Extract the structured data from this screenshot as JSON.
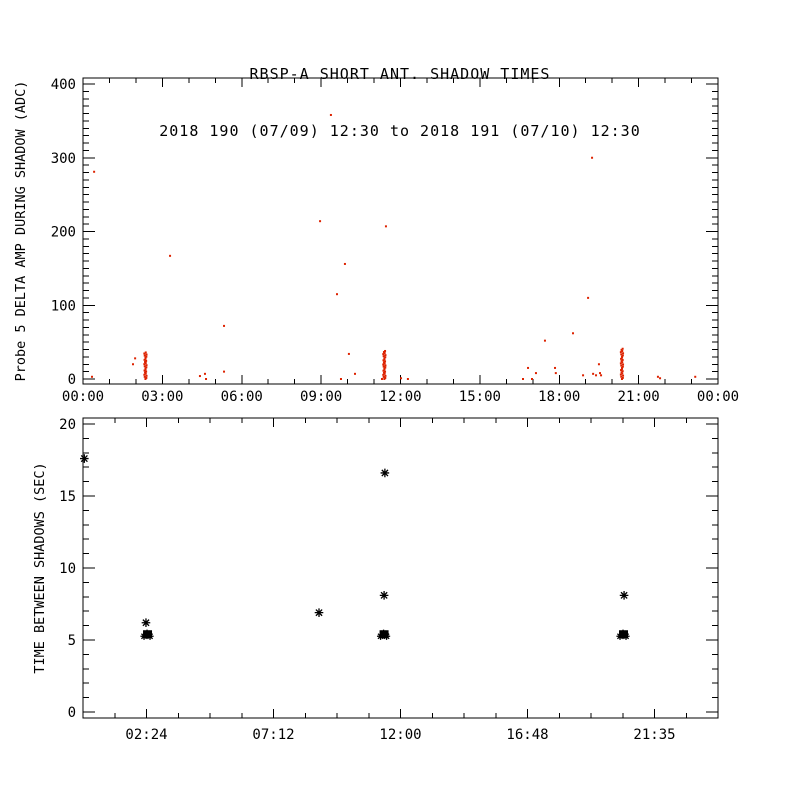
{
  "title": {
    "line1": "RBSP-A SHORT ANT. SHADOW TIMES",
    "line2": "2018 190 (07/09) 12:30 to 2018 191 (07/10) 12:30"
  },
  "colors": {
    "background": "#ffffff",
    "axis": "#000000",
    "top_marker": "#dd2200",
    "bottom_marker": "#000000"
  },
  "chart_data": [
    {
      "type": "scatter",
      "panel": "top",
      "title": "RBSP-A SHORT ANT. SHADOW TIMES",
      "subtitle": "2018 190 (07/09) 12:30 to 2018 191 (07/10) 12:30",
      "xlabel": "",
      "ylabel": "Probe 5 DELTA AMP DURING SHADOW (ADC)",
      "xlim_hours": [
        0,
        24
      ],
      "ylim": [
        0,
        400
      ],
      "x_major_tick_hours": [
        0,
        3,
        6,
        9,
        12,
        15,
        18,
        21,
        24
      ],
      "x_major_tick_labels": [
        "00:00",
        "03:00",
        "06:00",
        "09:00",
        "12:00",
        "15:00",
        "18:00",
        "21:00",
        "00:00"
      ],
      "x_minor_interval_hours": 1,
      "y_major_ticks": [
        0,
        100,
        200,
        300,
        400
      ],
      "y_minor_interval": 10,
      "grid": false,
      "marker": "dot",
      "marker_color": "#dd2200",
      "points_hour_value": [
        [
          0.34,
          3
        ],
        [
          0.42,
          281
        ],
        [
          1.89,
          20
        ],
        [
          1.97,
          28
        ],
        [
          3.29,
          167
        ],
        [
          4.42,
          4
        ],
        [
          4.61,
          7
        ],
        [
          4.65,
          0
        ],
        [
          5.33,
          10
        ],
        [
          5.33,
          72
        ],
        [
          8.96,
          214
        ],
        [
          9.37,
          358
        ],
        [
          9.6,
          115
        ],
        [
          9.75,
          0
        ],
        [
          9.9,
          156
        ],
        [
          10.05,
          34
        ],
        [
          10.28,
          7
        ],
        [
          11.3,
          0
        ],
        [
          11.45,
          207
        ],
        [
          12.02,
          1
        ],
        [
          12.28,
          0
        ],
        [
          16.63,
          0
        ],
        [
          16.82,
          15
        ],
        [
          16.97,
          0
        ],
        [
          17.12,
          8
        ],
        [
          17.46,
          52
        ],
        [
          17.84,
          15
        ],
        [
          17.87,
          8
        ],
        [
          18.52,
          62
        ],
        [
          18.9,
          5
        ],
        [
          19.09,
          110
        ],
        [
          19.24,
          300
        ],
        [
          19.28,
          7
        ],
        [
          19.39,
          5
        ],
        [
          19.5,
          20
        ],
        [
          19.54,
          8
        ],
        [
          19.58,
          5
        ],
        [
          21.73,
          3
        ],
        [
          21.81,
          1
        ],
        [
          23.14,
          3
        ]
      ],
      "shadow_event_streaks": [
        {
          "center_hour": 2.36,
          "value_min": 0,
          "value_max": 36,
          "n": 26
        },
        {
          "center_hour": 11.39,
          "value_min": 0,
          "value_max": 38,
          "n": 28
        },
        {
          "center_hour": 20.37,
          "value_min": 0,
          "value_max": 41,
          "n": 28
        }
      ]
    },
    {
      "type": "scatter",
      "panel": "bottom",
      "xlabel": "",
      "ylabel": "TIME BETWEEN SHADOWS (SEC)",
      "xlim_hours": [
        0,
        24
      ],
      "ylim": [
        0,
        20
      ],
      "x_major_tick_hours": [
        2.4,
        7.2,
        12.0,
        16.8,
        21.6
      ],
      "x_major_tick_labels": [
        "02:24",
        "07:12",
        "12:00",
        "16:48",
        "21:35"
      ],
      "x_minor_interval_hours": 1.2,
      "y_major_ticks": [
        0,
        5,
        10,
        15,
        20
      ],
      "y_minor_interval": 1,
      "grid": false,
      "marker": "asterisk",
      "marker_color": "#000000",
      "points_hour_value": [
        [
          0.05,
          17.6
        ],
        [
          2.38,
          6.2
        ],
        [
          8.92,
          6.9
        ],
        [
          11.38,
          8.1
        ],
        [
          11.41,
          16.6
        ],
        [
          20.45,
          8.1
        ]
      ],
      "dense_overlap_clusters_hour_value": [
        [
          2.42,
          5.4
        ],
        [
          11.36,
          5.4
        ],
        [
          20.41,
          5.4
        ]
      ]
    }
  ]
}
